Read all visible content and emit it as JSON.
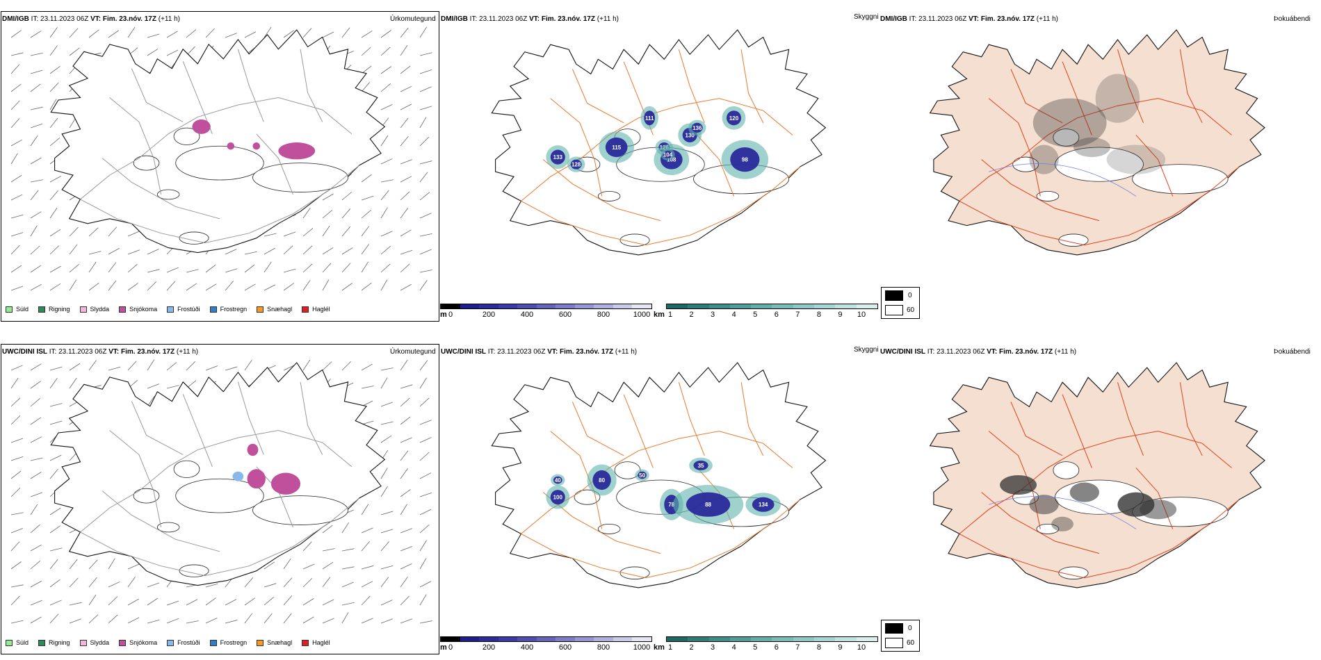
{
  "rows": [
    {
      "model": "DMI/IGB",
      "it_label": "IT:",
      "it_time": "23.11.2023 06Z",
      "vt_label": "VT:",
      "vt_time": "Fim. 23.nóv. 17Z",
      "lead": "(+11 h)",
      "precip_title": "Úrkomutegund",
      "vis_title": "Skyggni",
      "fog_title": "Þokuábendi",
      "vis_labels": [
        "115",
        "133",
        "128",
        "126",
        "108",
        "98",
        "130",
        "120",
        "111",
        "136",
        "104"
      ]
    },
    {
      "model": "UWC/DINI ISL",
      "it_label": "IT:",
      "it_time": "23.11.2023 06Z",
      "vt_label": "VT:",
      "vt_time": "Fim. 23.nóv. 17Z",
      "lead": "(+11 h)",
      "precip_title": "Úrkomutegund",
      "vis_title": "Skyggni",
      "fog_title": "Þokuábendi",
      "vis_labels": [
        "80",
        "78",
        "88",
        "134",
        "35",
        "50",
        "100",
        "40"
      ]
    }
  ],
  "precip_legend": [
    {
      "label": "Súld",
      "color": "#90ee90"
    },
    {
      "label": "Rigning",
      "color": "#2e8b57"
    },
    {
      "label": "Slydda",
      "color": "#f4b6d8"
    },
    {
      "label": "Snjókoma",
      "color": "#c0509c"
    },
    {
      "label": "Frostúði",
      "color": "#87b9ea"
    },
    {
      "label": "Frostregn",
      "color": "#2f7fc8"
    },
    {
      "label": "Snæhagl",
      "color": "#f39a2a"
    },
    {
      "label": "Haglél",
      "color": "#e02020"
    }
  ],
  "ceiling_bar": {
    "unit": "m",
    "ticks": [
      "0",
      "200",
      "400",
      "600",
      "800",
      "1000"
    ],
    "colors": [
      "#000000",
      "#1e1e8c",
      "#2b2b9e",
      "#3a3aa8",
      "#4d4db2",
      "#6464bd",
      "#7c7cc8",
      "#9696d4",
      "#b0b0e0",
      "#cacaeb",
      "#e6e6f5"
    ]
  },
  "vis_bar": {
    "unit": "km",
    "ticks": [
      "1",
      "2",
      "3",
      "4",
      "5",
      "6",
      "7",
      "8",
      "9",
      "10"
    ],
    "colors": [
      "#1b6b65",
      "#2a7e78",
      "#3b8f89",
      "#4e9f99",
      "#62aea9",
      "#77bcb7",
      "#8ec9c5",
      "#a6d6d3",
      "#bfe3e1",
      "#d9efee"
    ]
  },
  "fog_legend": {
    "items": [
      {
        "label": "0",
        "color": "#000000"
      },
      {
        "label": "60",
        "color": "#ffffff"
      }
    ]
  },
  "colors": {
    "land": "#f5dfd0",
    "road": "#e8792c",
    "road_red": "#e0401e",
    "river": "#6b7fe0",
    "glacier_line": "#222222"
  }
}
